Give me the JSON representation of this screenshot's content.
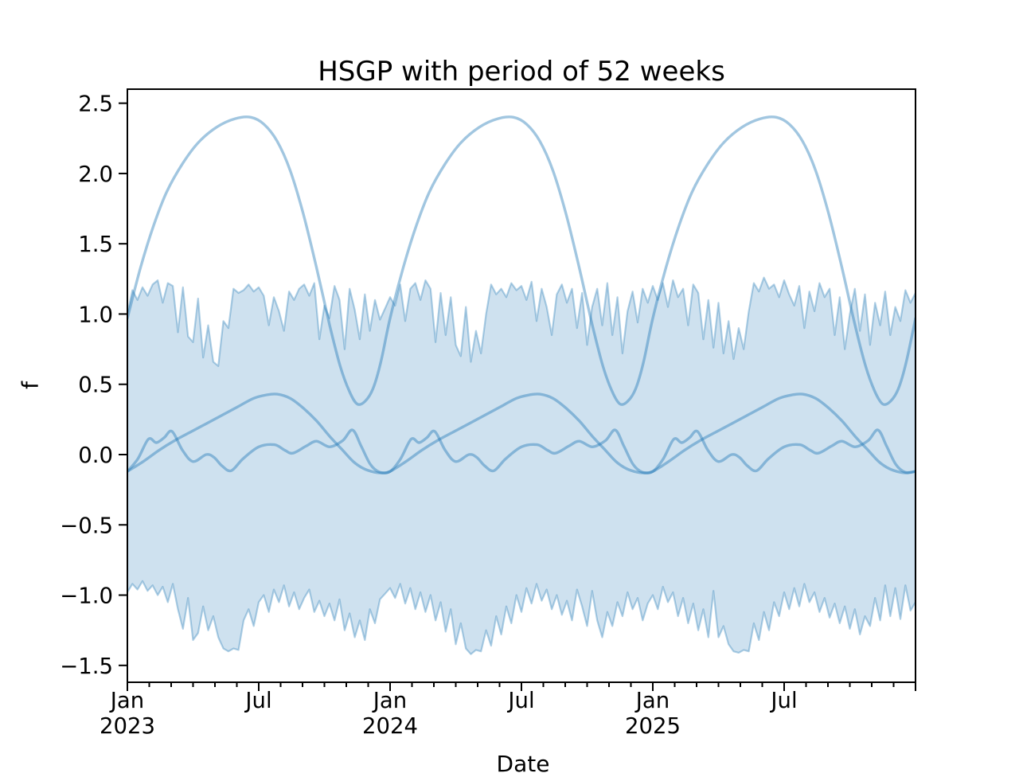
{
  "chart_data": {
    "type": "line",
    "title": "HSGP with period of 52 weeks",
    "xlabel": "Date",
    "ylabel": "f",
    "description": "Three periodic GP sample paths (period 52 weeks) drawn over a noisy weekly credible-interval band, Jan 2023 through Dec 2025",
    "x_unit": "years since 2023-01-01",
    "xlim": [
      0,
      3
    ],
    "ylim": [
      -1.62,
      2.6
    ],
    "grid": false,
    "legend": "none",
    "colors": {
      "line": "rgba(31,119,180,0.42)",
      "band_fill": "rgba(31,119,180,0.22)",
      "band_edge": "rgba(31,119,180,0.35)",
      "axis": "#000000"
    },
    "y_ticks": [
      {
        "v": 2.5,
        "label": "2.5"
      },
      {
        "v": 2.0,
        "label": "2.0"
      },
      {
        "v": 1.5,
        "label": "1.5"
      },
      {
        "v": 1.0,
        "label": "1.0"
      },
      {
        "v": 0.5,
        "label": "0.5"
      },
      {
        "v": 0.0,
        "label": "0.0"
      },
      {
        "v": -0.5,
        "label": "−0.5"
      },
      {
        "v": -1.0,
        "label": "−1.0"
      },
      {
        "v": -1.5,
        "label": "−1.5"
      }
    ],
    "x_major_ticks": [
      {
        "t": 0.0,
        "label": [
          "Jan",
          "2023"
        ]
      },
      {
        "t": 0.5,
        "label": [
          "Jul"
        ]
      },
      {
        "t": 1.0,
        "label": [
          "Jan",
          "2024"
        ]
      },
      {
        "t": 1.5,
        "label": [
          "Jul"
        ]
      },
      {
        "t": 2.0,
        "label": [
          "Jan",
          "2025"
        ]
      },
      {
        "t": 2.5,
        "label": [
          "Jul"
        ]
      },
      {
        "t": 3.0,
        "label": []
      }
    ],
    "x_minor_months": true,
    "band": {
      "name": "hdi-band",
      "x_step_weeks": 1,
      "weeks_per_year": 52,
      "upper": [
        1.0,
        1.17,
        1.1,
        1.19,
        1.13,
        1.21,
        1.24,
        1.08,
        1.22,
        1.2,
        0.87,
        1.19,
        0.84,
        0.8,
        1.11,
        0.69,
        0.92,
        0.66,
        0.63,
        0.95,
        0.9,
        1.18,
        1.15,
        1.17,
        1.21,
        1.16,
        1.19,
        1.13,
        0.92,
        1.12,
        1.02,
        0.88,
        1.16,
        1.1,
        1.18,
        1.21,
        1.13,
        1.22,
        0.82,
        1.06,
        0.97,
        1.2,
        1.1,
        0.75,
        1.18,
        1.03,
        0.82,
        1.14,
        0.88,
        1.1,
        0.96,
        1.04,
        1.12,
        1.06,
        1.21,
        0.95,
        1.18,
        1.22,
        1.1,
        1.24,
        1.18,
        0.8,
        1.15,
        0.85,
        1.12,
        0.78,
        0.7,
        1.05,
        0.66,
        0.88,
        0.72,
        1.0,
        1.21,
        1.14,
        1.18,
        1.12,
        1.22,
        1.17,
        1.2,
        1.1,
        1.23,
        0.95,
        1.18,
        1.05,
        0.85,
        1.14,
        1.21,
        1.08,
        1.18,
        0.9,
        1.15,
        0.78,
        1.05,
        1.18,
        0.92,
        1.22,
        0.85,
        1.12,
        0.72,
        1.02,
        1.16,
        0.94,
        1.18,
        1.08,
        1.2,
        1.1,
        1.22,
        1.05,
        1.24,
        1.12,
        1.18,
        0.92,
        1.21,
        1.15,
        0.82,
        1.1,
        0.76,
        1.08,
        0.72,
        0.95,
        0.68,
        0.9,
        0.75,
        1.02,
        1.22,
        1.16,
        1.26,
        1.18,
        1.21,
        1.12,
        1.24,
        1.14,
        1.06,
        1.2,
        0.9,
        1.16,
        1.02,
        1.22,
        1.12,
        1.18,
        0.85,
        1.12,
        0.75,
        1.0,
        1.18,
        0.88,
        1.14,
        0.78,
        1.08,
        0.92,
        1.16,
        0.85,
        1.05,
        0.95,
        1.17,
        1.08,
        1.15
      ],
      "lower": [
        -0.98,
        -0.92,
        -0.96,
        -0.9,
        -0.97,
        -0.93,
        -1.0,
        -0.94,
        -1.05,
        -0.92,
        -1.1,
        -1.24,
        -1.02,
        -1.32,
        -1.27,
        -1.08,
        -1.25,
        -1.15,
        -1.3,
        -1.38,
        -1.4,
        -1.38,
        -1.39,
        -1.18,
        -1.1,
        -1.22,
        -1.05,
        -1.0,
        -1.12,
        -0.96,
        -1.05,
        -0.93,
        -1.08,
        -0.98,
        -1.1,
        -1.02,
        -0.96,
        -1.12,
        -1.04,
        -1.15,
        -1.06,
        -1.18,
        -1.03,
        -1.25,
        -1.13,
        -1.3,
        -1.18,
        -1.32,
        -1.1,
        -1.2,
        -1.03,
        -0.99,
        -0.95,
        -1.02,
        -0.92,
        -1.06,
        -0.95,
        -1.1,
        -0.98,
        -1.12,
        -1.0,
        -1.18,
        -1.05,
        -1.26,
        -1.1,
        -1.35,
        -1.2,
        -1.38,
        -1.42,
        -1.39,
        -1.4,
        -1.25,
        -1.36,
        -1.15,
        -1.28,
        -1.08,
        -1.2,
        -1.0,
        -1.12,
        -0.95,
        -1.06,
        -0.92,
        -1.04,
        -0.96,
        -1.1,
        -1.0,
        -1.14,
        -1.04,
        -1.18,
        -0.96,
        -1.08,
        -1.22,
        -0.97,
        -1.18,
        -1.3,
        -1.12,
        -1.22,
        -1.05,
        -1.15,
        -0.98,
        -1.1,
        -1.02,
        -1.18,
        -1.06,
        -1.0,
        -1.1,
        -0.94,
        -1.05,
        -0.98,
        -1.15,
        -1.02,
        -1.2,
        -1.06,
        -1.25,
        -1.1,
        -1.3,
        -0.97,
        -1.3,
        -1.22,
        -1.35,
        -1.4,
        -1.41,
        -1.39,
        -1.4,
        -1.2,
        -1.32,
        -1.12,
        -1.25,
        -1.05,
        -1.15,
        -0.98,
        -1.1,
        -0.95,
        -1.08,
        -0.92,
        -1.05,
        -0.98,
        -1.12,
        -1.02,
        -1.16,
        -1.06,
        -1.2,
        -1.08,
        -1.24,
        -1.1,
        -1.28,
        -1.15,
        -1.22,
        -1.02,
        -1.18,
        -0.93,
        -1.15,
        -0.95,
        -1.17,
        -0.93,
        -1.11,
        -1.05
      ]
    },
    "samples": [
      {
        "name": "sample-1",
        "period_years": 1,
        "peak": {
          "t": 0.47,
          "v": 2.4
        },
        "trough": {
          "t": 0.875,
          "v": 0.36
        },
        "anchors_t": [
          0,
          0.05,
          0.1,
          0.15,
          0.21,
          0.27,
          0.34,
          0.41,
          0.47,
          0.52,
          0.57,
          0.62,
          0.67,
          0.72,
          0.77,
          0.81,
          0.845,
          0.875,
          0.905,
          0.935,
          0.965
        ],
        "anchors_v": [
          0.97,
          1.33,
          1.63,
          1.87,
          2.07,
          2.22,
          2.33,
          2.39,
          2.4,
          2.35,
          2.23,
          2.02,
          1.71,
          1.33,
          0.92,
          0.63,
          0.45,
          0.36,
          0.38,
          0.47,
          0.66
        ]
      },
      {
        "name": "sample-2",
        "period_years": 1,
        "peak": {
          "t": 0.57,
          "v": 0.43
        },
        "trough": {
          "t": 0.97,
          "v": -0.13
        },
        "anchors_t": [
          0,
          0.06,
          0.12,
          0.18,
          0.24,
          0.3,
          0.36,
          0.42,
          0.48,
          0.53,
          0.57,
          0.62,
          0.67,
          0.72,
          0.77,
          0.82,
          0.86,
          0.9,
          0.94,
          0.97
        ],
        "anchors_v": [
          -0.12,
          -0.05,
          0.03,
          0.1,
          0.16,
          0.22,
          0.28,
          0.34,
          0.4,
          0.425,
          0.43,
          0.4,
          0.33,
          0.24,
          0.13,
          0.03,
          -0.05,
          -0.1,
          -0.125,
          -0.13
        ]
      },
      {
        "name": "sample-3",
        "period_years": 1,
        "peak": {
          "t": 0.857,
          "v": 0.175
        },
        "trough": {
          "t": 0.96,
          "v": -0.125
        },
        "anchors_t": [
          0,
          0.04,
          0.08,
          0.11,
          0.14,
          0.17,
          0.21,
          0.25,
          0.3,
          0.33,
          0.36,
          0.395,
          0.44,
          0.5,
          0.56,
          0.6,
          0.63,
          0.68,
          0.72,
          0.77,
          0.82,
          0.857,
          0.89,
          0.925,
          0.96
        ],
        "anchors_v": [
          -0.12,
          -0.03,
          0.11,
          0.085,
          0.12,
          0.165,
          0.03,
          -0.05,
          0.0,
          -0.02,
          -0.08,
          -0.115,
          -0.03,
          0.055,
          0.07,
          0.03,
          0.01,
          0.06,
          0.095,
          0.055,
          0.1,
          0.175,
          0.06,
          -0.07,
          -0.125
        ]
      }
    ]
  }
}
